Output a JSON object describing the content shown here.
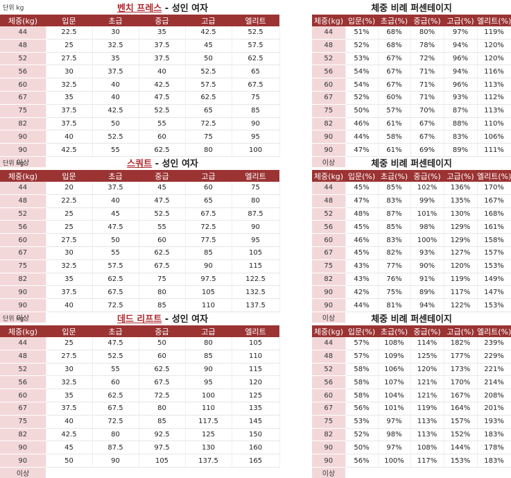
{
  "unit_label": "단위 kg",
  "weights": [
    "44",
    "48",
    "52",
    "56",
    "60",
    "67",
    "75",
    "82",
    "90",
    "90"
  ],
  "more_label": "이상",
  "left_headers": [
    "체중(kg)",
    "입문",
    "초급",
    "중급",
    "고급",
    "엘리트"
  ],
  "right_title": "체중 비례 퍼센테이지",
  "right_headers": [
    "체중(kg)",
    "입문(%)",
    "초급(%)",
    "중급(%)",
    "고급(%)",
    "엘리트(%)"
  ],
  "sections": [
    {
      "exercise": "벤치 프레스",
      "suffix": " - 성인 여자",
      "rows": [
        [
          "22.5",
          "30",
          "35",
          "42.5",
          "52.5"
        ],
        [
          "25",
          "32.5",
          "37.5",
          "45",
          "57.5"
        ],
        [
          "27.5",
          "35",
          "37.5",
          "50",
          "62.5"
        ],
        [
          "30",
          "37.5",
          "40",
          "52.5",
          "65"
        ],
        [
          "32.5",
          "40",
          "42.5",
          "57.5",
          "67.5"
        ],
        [
          "35",
          "40",
          "47.5",
          "62.5",
          "75"
        ],
        [
          "37.5",
          "42.5",
          "52.5",
          "65",
          "85"
        ],
        [
          "37.5",
          "50",
          "55",
          "72.5",
          "90"
        ],
        [
          "40",
          "52.5",
          "60",
          "75",
          "95"
        ],
        [
          "42.5",
          "55",
          "62.5",
          "80",
          "100"
        ]
      ],
      "pct": [
        [
          "51%",
          "68%",
          "80%",
          "97%",
          "119%"
        ],
        [
          "52%",
          "68%",
          "78%",
          "94%",
          "120%"
        ],
        [
          "53%",
          "67%",
          "72%",
          "96%",
          "120%"
        ],
        [
          "54%",
          "67%",
          "71%",
          "94%",
          "116%"
        ],
        [
          "54%",
          "67%",
          "71%",
          "96%",
          "113%"
        ],
        [
          "52%",
          "60%",
          "71%",
          "93%",
          "112%"
        ],
        [
          "50%",
          "57%",
          "70%",
          "87%",
          "113%"
        ],
        [
          "46%",
          "61%",
          "67%",
          "88%",
          "110%"
        ],
        [
          "44%",
          "58%",
          "67%",
          "83%",
          "106%"
        ],
        [
          "47%",
          "61%",
          "69%",
          "89%",
          "111%"
        ]
      ]
    },
    {
      "exercise": "스쿼트",
      "suffix": " - 성인 여자",
      "rows": [
        [
          "20",
          "37.5",
          "45",
          "60",
          "75"
        ],
        [
          "22.5",
          "40",
          "47.5",
          "65",
          "80"
        ],
        [
          "25",
          "45",
          "52.5",
          "67.5",
          "87.5"
        ],
        [
          "25",
          "47.5",
          "55",
          "72.5",
          "90"
        ],
        [
          "27.5",
          "50",
          "60",
          "77.5",
          "95"
        ],
        [
          "30",
          "55",
          "62.5",
          "85",
          "105"
        ],
        [
          "32.5",
          "57.5",
          "67.5",
          "90",
          "115"
        ],
        [
          "35",
          "62.5",
          "75",
          "97.5",
          "122.5"
        ],
        [
          "37.5",
          "67.5",
          "80",
          "105",
          "132.5"
        ],
        [
          "40",
          "72.5",
          "85",
          "110",
          "137.5"
        ]
      ],
      "pct": [
        [
          "45%",
          "85%",
          "102%",
          "136%",
          "170%"
        ],
        [
          "47%",
          "83%",
          "99%",
          "135%",
          "167%"
        ],
        [
          "48%",
          "87%",
          "101%",
          "130%",
          "168%"
        ],
        [
          "45%",
          "85%",
          "98%",
          "129%",
          "161%"
        ],
        [
          "46%",
          "83%",
          "100%",
          "129%",
          "158%"
        ],
        [
          "45%",
          "82%",
          "93%",
          "127%",
          "157%"
        ],
        [
          "43%",
          "77%",
          "90%",
          "120%",
          "153%"
        ],
        [
          "43%",
          "76%",
          "91%",
          "119%",
          "149%"
        ],
        [
          "42%",
          "75%",
          "89%",
          "117%",
          "147%"
        ],
        [
          "44%",
          "81%",
          "94%",
          "122%",
          "153%"
        ]
      ]
    },
    {
      "exercise": "데드 리프트",
      "suffix": " - 성인 여자",
      "rows": [
        [
          "25",
          "47.5",
          "50",
          "80",
          "105"
        ],
        [
          "27.5",
          "52.5",
          "60",
          "85",
          "110"
        ],
        [
          "30",
          "55",
          "62.5",
          "90",
          "115"
        ],
        [
          "32.5",
          "60",
          "67.5",
          "95",
          "120"
        ],
        [
          "35",
          "62.5",
          "72.5",
          "100",
          "125"
        ],
        [
          "37.5",
          "67.5",
          "80",
          "110",
          "135"
        ],
        [
          "40",
          "72.5",
          "85",
          "117.5",
          "145"
        ],
        [
          "42.5",
          "80",
          "92.5",
          "125",
          "150"
        ],
        [
          "45",
          "87.5",
          "97.5",
          "130",
          "160"
        ],
        [
          "50",
          "90",
          "105",
          "137.5",
          "165"
        ]
      ],
      "pct": [
        [
          "57%",
          "108%",
          "114%",
          "182%",
          "239%"
        ],
        [
          "57%",
          "109%",
          "125%",
          "177%",
          "229%"
        ],
        [
          "58%",
          "106%",
          "120%",
          "173%",
          "221%"
        ],
        [
          "58%",
          "107%",
          "121%",
          "170%",
          "214%"
        ],
        [
          "58%",
          "104%",
          "121%",
          "167%",
          "208%"
        ],
        [
          "56%",
          "101%",
          "119%",
          "164%",
          "201%"
        ],
        [
          "53%",
          "97%",
          "113%",
          "157%",
          "193%"
        ],
        [
          "52%",
          "98%",
          "113%",
          "152%",
          "183%"
        ],
        [
          "50%",
          "97%",
          "108%",
          "144%",
          "178%"
        ],
        [
          "56%",
          "100%",
          "117%",
          "153%",
          "183%"
        ]
      ]
    }
  ]
}
